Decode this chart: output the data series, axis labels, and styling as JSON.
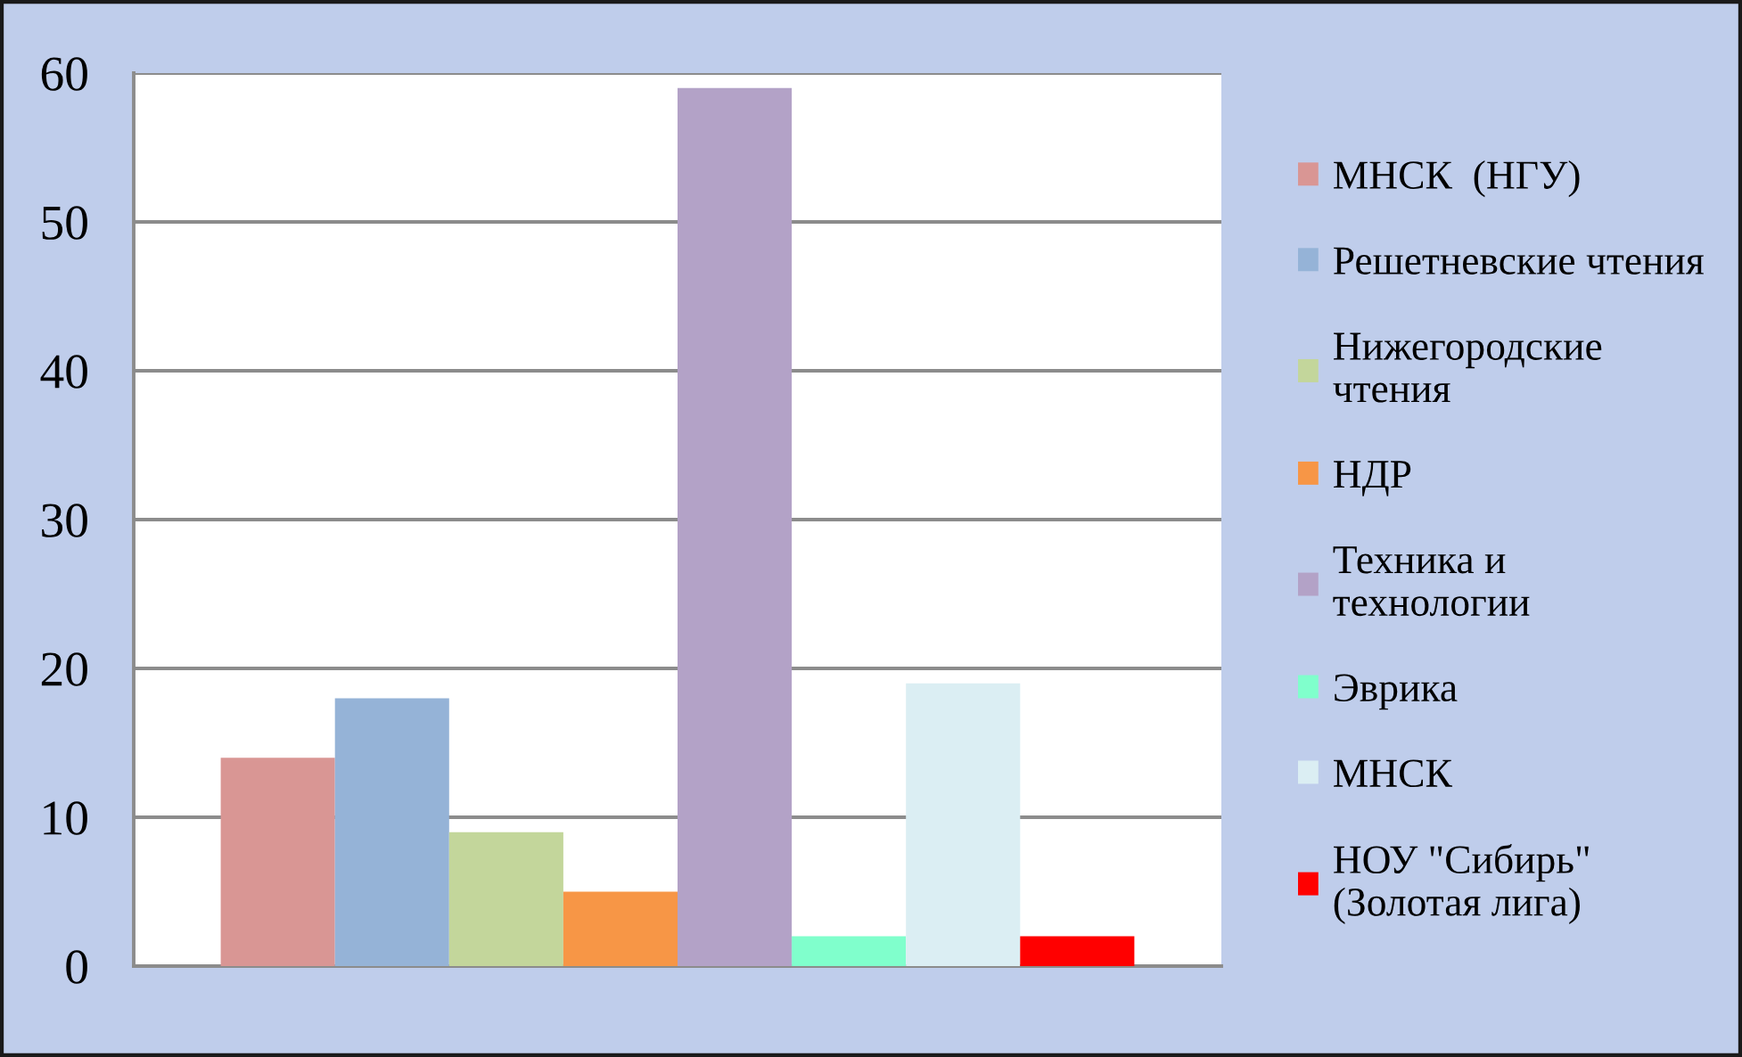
{
  "chart_data": {
    "type": "bar",
    "categories": [
      null
    ],
    "series": [
      {
        "name": "МНСК  (НГУ)",
        "color": "#d99694",
        "values": [
          14
        ]
      },
      {
        "name": "Решетневские чтения",
        "color": "#95b3d7",
        "values": [
          18
        ]
      },
      {
        "name": "Нижегородские чтения",
        "color": "#c3d69b",
        "values": [
          9
        ]
      },
      {
        "name": "НДР",
        "color": "#f79646",
        "values": [
          5
        ]
      },
      {
        "name": "Техника и технологии",
        "color": "#b3a2c7",
        "values": [
          59
        ]
      },
      {
        "name": "Эврика",
        "color": "#80ffcc",
        "values": [
          2
        ]
      },
      {
        "name": "МНСК",
        "color": "#dbeef3",
        "values": [
          19
        ]
      },
      {
        "name": "НОУ \"Сибирь\" (Золотая лига)",
        "color": "#ff0000",
        "values": [
          2
        ]
      }
    ],
    "ylim": [
      0,
      60
    ],
    "yticks": [
      0,
      10,
      20,
      30,
      40,
      50,
      60
    ],
    "grid": "y",
    "legend": "right"
  }
}
